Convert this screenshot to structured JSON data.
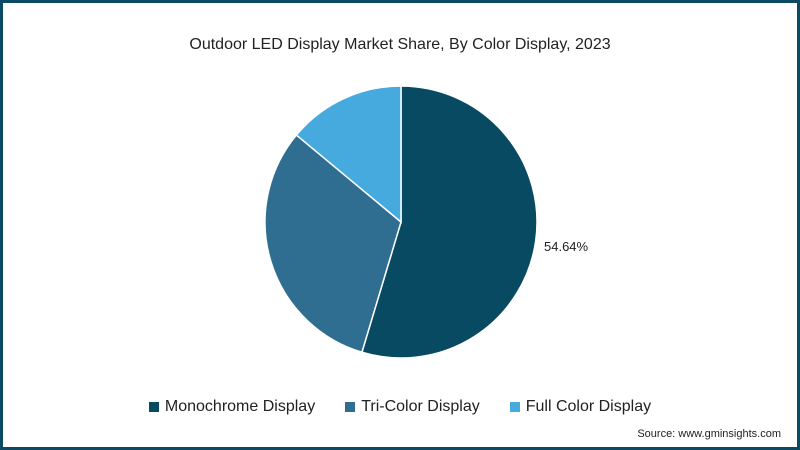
{
  "chart_data": {
    "type": "pie",
    "title": "Outdoor LED Display Market Share, By Color Display, 2023",
    "categories": [
      "Monochrome Display",
      "Tri-Color Display",
      "Full Color Display"
    ],
    "values": [
      54.64,
      31.4,
      13.96
    ],
    "colors": [
      "#084a62",
      "#2f6e91",
      "#47aadf"
    ],
    "data_labels": [
      "54.64%",
      "",
      ""
    ],
    "legend_position": "bottom",
    "source": "Source: www.gminsights.com"
  },
  "title": "Outdoor LED Display Market Share, By Color Display, 2023",
  "label_main": "54.64%",
  "legend": [
    {
      "label": "Monochrome Display",
      "color": "#084a62"
    },
    {
      "label": "Tri-Color Display",
      "color": "#2f6e91"
    },
    {
      "label": "Full Color Display",
      "color": "#47aadf"
    }
  ],
  "source": "Source: www.gminsights.com"
}
